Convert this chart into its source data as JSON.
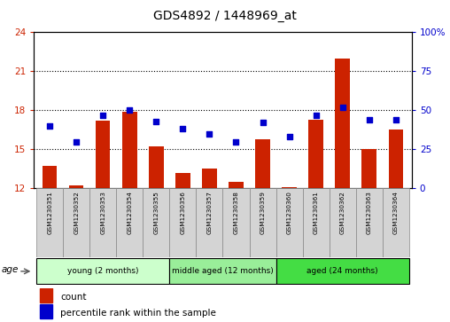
{
  "title": "GDS4892 / 1448969_at",
  "samples": [
    "GSM1230351",
    "GSM1230352",
    "GSM1230353",
    "GSM1230354",
    "GSM1230355",
    "GSM1230356",
    "GSM1230357",
    "GSM1230358",
    "GSM1230359",
    "GSM1230360",
    "GSM1230361",
    "GSM1230362",
    "GSM1230363",
    "GSM1230364"
  ],
  "bar_heights": [
    13.7,
    12.2,
    17.2,
    17.9,
    15.2,
    13.2,
    13.5,
    12.5,
    15.8,
    12.1,
    17.3,
    22.0,
    15.0,
    16.5
  ],
  "percentile_ranks": [
    40,
    30,
    47,
    50,
    43,
    38,
    35,
    30,
    42,
    33,
    47,
    52,
    44,
    44
  ],
  "bar_bottom": 12,
  "ylim_left": [
    12,
    24
  ],
  "ylim_right": [
    0,
    100
  ],
  "yticks_left": [
    12,
    15,
    18,
    21,
    24
  ],
  "yticks_right": [
    0,
    25,
    50,
    75,
    100
  ],
  "ytick_labels_right": [
    "0",
    "25",
    "50",
    "75",
    "100%"
  ],
  "bar_color": "#cc2200",
  "dot_color": "#0000cc",
  "groups": [
    {
      "label": "young (2 months)",
      "start": 0,
      "end": 5,
      "color": "#ccffcc"
    },
    {
      "label": "middle aged (12 months)",
      "start": 5,
      "end": 9,
      "color": "#99ee99"
    },
    {
      "label": "aged (24 months)",
      "start": 9,
      "end": 14,
      "color": "#44dd44"
    }
  ],
  "age_label": "age",
  "legend_count_label": "count",
  "legend_percentile_label": "percentile rank within the sample",
  "background_color": "#ffffff",
  "tick_color_left": "#cc2200",
  "tick_color_right": "#0000cc",
  "gridline_yticks": [
    15,
    18,
    21
  ]
}
